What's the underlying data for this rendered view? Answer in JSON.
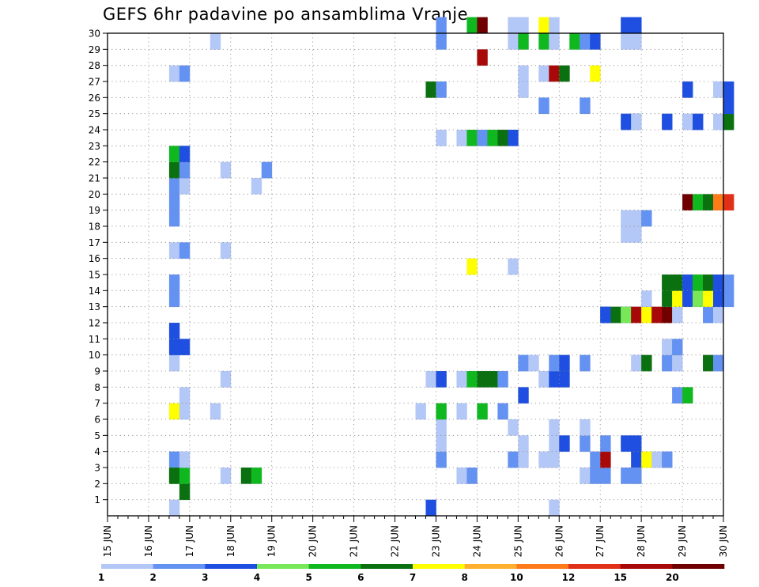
{
  "chart_data": {
    "type": "heatmap",
    "title": "GEFS 6hr padavine po ansamblima Vranje",
    "xlabel": "",
    "ylabel": "",
    "x_ticks": [
      "15 JUN",
      "16 JUN",
      "17 JUN",
      "18 JUN",
      "19 JUN",
      "20 JUN",
      "21 JUN",
      "22 JUN",
      "23 JUN",
      "24 JUN",
      "25 JUN",
      "26 JUN",
      "27 JUN",
      "28 JUN",
      "29 JUN",
      "30 JUN"
    ],
    "y_ticks": [
      "1",
      "2",
      "3",
      "4",
      "5",
      "6",
      "7",
      "8",
      "9",
      "10",
      "11",
      "12",
      "13",
      "14",
      "15",
      "16",
      "17",
      "18",
      "19",
      "20",
      "21",
      "22",
      "23",
      "24",
      "25",
      "26",
      "27",
      "28",
      "29",
      "30"
    ],
    "grid": true,
    "legend": {
      "placement": "bottom",
      "labels": [
        "1",
        "2",
        "3",
        "4",
        "5",
        "6",
        "7",
        "8",
        "10",
        "12",
        "15",
        "20"
      ],
      "colors": [
        "#b4c8f8",
        "#6492f2",
        "#1e4fe0",
        "#78e858",
        "#10b820",
        "#0a7010",
        "#ffff00",
        "#ffb030",
        "#ff7a18",
        "#e03018",
        "#a80808",
        "#700000"
      ]
    },
    "x_range": [
      "15 JUN 00Z",
      "30 JUN 00Z"
    ],
    "time_step": "6hr",
    "y_range": [
      0,
      30
    ],
    "cells_note": "each cell: [day(JUN), hour UTC, member, color level]",
    "cells": [
      [
        16,
        12,
        0,
        0
      ],
      [
        16,
        12,
        3,
        1
      ],
      [
        16,
        12,
        2,
        4
      ],
      [
        16,
        12,
        2,
        5
      ],
      [
        16,
        18,
        1,
        5
      ],
      [
        16,
        18,
        2,
        4
      ],
      [
        16,
        18,
        3,
        0
      ],
      [
        16,
        12,
        6,
        6
      ],
      [
        16,
        18,
        6,
        0
      ],
      [
        16,
        18,
        7,
        0
      ],
      [
        16,
        12,
        9,
        0
      ],
      [
        16,
        12,
        10,
        2
      ],
      [
        16,
        18,
        10,
        2
      ],
      [
        16,
        12,
        11,
        2
      ],
      [
        16,
        12,
        13,
        1
      ],
      [
        16,
        12,
        14,
        1
      ],
      [
        16,
        12,
        16,
        0
      ],
      [
        16,
        18,
        16,
        1
      ],
      [
        16,
        12,
        18,
        1
      ],
      [
        16,
        12,
        19,
        1
      ],
      [
        16,
        12,
        20,
        1
      ],
      [
        16,
        18,
        20,
        0
      ],
      [
        16,
        12,
        21,
        5
      ],
      [
        16,
        18,
        21,
        1
      ],
      [
        16,
        12,
        22,
        4
      ],
      [
        16,
        18,
        22,
        2
      ],
      [
        16,
        12,
        27,
        0
      ],
      [
        16,
        18,
        27,
        1
      ],
      [
        17,
        12,
        6,
        0
      ],
      [
        17,
        12,
        29,
        0
      ],
      [
        17,
        18,
        2,
        0
      ],
      [
        17,
        18,
        8,
        0
      ],
      [
        17,
        18,
        16,
        0
      ],
      [
        17,
        18,
        21,
        0
      ],
      [
        18,
        6,
        2,
        5
      ],
      [
        18,
        12,
        2,
        4
      ],
      [
        18,
        12,
        20,
        0
      ],
      [
        18,
        18,
        21,
        1
      ],
      [
        22,
        18,
        0,
        2
      ],
      [
        22,
        12,
        6,
        0
      ],
      [
        22,
        18,
        8,
        0
      ],
      [
        23,
        0,
        8,
        2
      ],
      [
        23,
        0,
        3,
        1
      ],
      [
        23,
        0,
        4,
        0
      ],
      [
        23,
        0,
        5,
        0
      ],
      [
        23,
        0,
        6,
        4
      ],
      [
        23,
        0,
        23,
        0
      ],
      [
        23,
        0,
        29,
        1
      ],
      [
        23,
        0,
        30,
        1
      ],
      [
        22,
        18,
        26,
        5
      ],
      [
        23,
        0,
        26,
        1
      ],
      [
        23,
        12,
        2,
        0
      ],
      [
        23,
        12,
        6,
        0
      ],
      [
        23,
        12,
        8,
        0
      ],
      [
        23,
        12,
        23,
        0
      ],
      [
        23,
        18,
        2,
        1
      ],
      [
        23,
        18,
        8,
        4
      ],
      [
        23,
        18,
        23,
        4
      ],
      [
        23,
        18,
        15,
        6
      ],
      [
        23,
        18,
        30,
        4
      ],
      [
        24,
        0,
        6,
        4
      ],
      [
        24,
        0,
        8,
        5
      ],
      [
        24,
        0,
        23,
        1
      ],
      [
        24,
        0,
        28,
        10
      ],
      [
        24,
        0,
        30,
        11
      ],
      [
        24,
        6,
        8,
        5
      ],
      [
        24,
        6,
        23,
        4
      ],
      [
        24,
        12,
        6,
        1
      ],
      [
        24,
        12,
        8,
        1
      ],
      [
        24,
        12,
        23,
        5
      ],
      [
        24,
        18,
        3,
        1
      ],
      [
        24,
        18,
        5,
        0
      ],
      [
        24,
        18,
        15,
        0
      ],
      [
        24,
        18,
        23,
        2
      ],
      [
        24,
        18,
        29,
        0
      ],
      [
        24,
        18,
        30,
        0
      ],
      [
        25,
        0,
        3,
        0
      ],
      [
        25,
        0,
        4,
        0
      ],
      [
        25,
        0,
        7,
        2
      ],
      [
        25,
        0,
        9,
        1
      ],
      [
        25,
        0,
        26,
        0
      ],
      [
        25,
        0,
        27,
        0
      ],
      [
        25,
        0,
        29,
        4
      ],
      [
        25,
        0,
        30,
        0
      ],
      [
        25,
        6,
        9,
        0
      ],
      [
        25,
        12,
        3,
        0
      ],
      [
        25,
        12,
        8,
        0
      ],
      [
        25,
        12,
        25,
        1
      ],
      [
        25,
        12,
        27,
        0
      ],
      [
        25,
        12,
        29,
        4
      ],
      [
        25,
        12,
        30,
        6
      ],
      [
        25,
        18,
        0,
        0
      ],
      [
        25,
        18,
        3,
        0
      ],
      [
        25,
        18,
        4,
        0
      ],
      [
        25,
        18,
        5,
        0
      ],
      [
        25,
        18,
        8,
        2
      ],
      [
        25,
        18,
        9,
        1
      ],
      [
        25,
        18,
        27,
        10
      ],
      [
        25,
        18,
        29,
        0
      ],
      [
        25,
        18,
        30,
        0
      ],
      [
        26,
        0,
        4,
        2
      ],
      [
        26,
        0,
        8,
        2
      ],
      [
        26,
        0,
        9,
        2
      ],
      [
        26,
        0,
        27,
        5
      ],
      [
        26,
        6,
        29,
        4
      ],
      [
        26,
        12,
        29,
        1
      ],
      [
        26,
        18,
        29,
        2
      ],
      [
        26,
        12,
        2,
        0
      ],
      [
        26,
        12,
        4,
        1
      ],
      [
        26,
        12,
        5,
        0
      ],
      [
        26,
        12,
        9,
        1
      ],
      [
        26,
        12,
        25,
        1
      ],
      [
        26,
        18,
        2,
        1
      ],
      [
        26,
        18,
        3,
        1
      ],
      [
        26,
        18,
        27,
        6
      ],
      [
        27,
        0,
        2,
        1
      ],
      [
        27,
        0,
        3,
        10
      ],
      [
        27,
        0,
        4,
        1
      ],
      [
        27,
        0,
        12,
        2
      ],
      [
        27,
        6,
        12,
        5
      ],
      [
        27,
        12,
        12,
        1
      ],
      [
        27,
        12,
        12,
        3
      ],
      [
        27,
        0,
        12,
        2
      ],
      [
        27,
        18,
        2,
        0
      ],
      [
        27,
        18,
        3,
        2
      ],
      [
        27,
        18,
        4,
        2
      ],
      [
        27,
        18,
        24,
        2
      ],
      [
        27,
        18,
        30,
        2
      ],
      [
        27,
        18,
        29,
        0
      ],
      [
        27,
        12,
        2,
        1
      ],
      [
        27,
        12,
        4,
        2
      ],
      [
        27,
        12,
        17,
        0
      ],
      [
        27,
        12,
        18,
        0
      ],
      [
        27,
        12,
        24,
        2
      ],
      [
        27,
        12,
        29,
        0
      ],
      [
        27,
        12,
        30,
        2
      ],
      [
        27,
        18,
        9,
        0
      ],
      [
        27,
        18,
        17,
        0
      ],
      [
        27,
        18,
        18,
        0
      ],
      [
        27,
        18,
        12,
        10
      ],
      [
        27,
        18,
        24,
        0
      ],
      [
        27,
        18,
        2,
        1
      ],
      [
        28,
        0,
        3,
        6
      ],
      [
        28,
        0,
        9,
        5
      ],
      [
        28,
        0,
        12,
        6
      ],
      [
        28,
        0,
        13,
        0
      ],
      [
        28,
        0,
        18,
        1
      ],
      [
        28,
        6,
        12,
        10
      ],
      [
        28,
        6,
        3,
        0
      ],
      [
        28,
        12,
        12,
        11
      ],
      [
        28,
        12,
        3,
        1
      ],
      [
        28,
        12,
        9,
        1
      ],
      [
        28,
        12,
        10,
        0
      ],
      [
        28,
        12,
        13,
        5
      ],
      [
        28,
        12,
        14,
        5
      ],
      [
        28,
        12,
        24,
        2
      ],
      [
        28,
        18,
        7,
        1
      ],
      [
        28,
        18,
        9,
        0
      ],
      [
        28,
        18,
        10,
        1
      ],
      [
        28,
        18,
        12,
        0
      ],
      [
        28,
        18,
        13,
        6
      ],
      [
        28,
        18,
        14,
        5
      ],
      [
        29,
        0,
        7,
        4
      ],
      [
        29,
        0,
        13,
        2
      ],
      [
        29,
        0,
        14,
        2
      ],
      [
        29,
        0,
        19,
        11
      ],
      [
        29,
        0,
        24,
        0
      ],
      [
        29,
        0,
        26,
        2
      ],
      [
        29,
        6,
        13,
        3
      ],
      [
        29,
        6,
        14,
        4
      ],
      [
        29,
        6,
        19,
        4
      ],
      [
        29,
        6,
        24,
        2
      ],
      [
        29,
        12,
        9,
        5
      ],
      [
        29,
        12,
        12,
        1
      ],
      [
        29,
        12,
        13,
        6
      ],
      [
        29,
        12,
        14,
        5
      ],
      [
        29,
        12,
        19,
        5
      ],
      [
        29,
        18,
        9,
        1
      ],
      [
        29,
        18,
        12,
        0
      ],
      [
        29,
        18,
        13,
        2
      ],
      [
        29,
        18,
        14,
        2
      ],
      [
        29,
        18,
        19,
        8
      ],
      [
        29,
        18,
        24,
        0
      ],
      [
        29,
        18,
        26,
        0
      ],
      [
        30,
        0,
        13,
        1
      ],
      [
        30,
        0,
        14,
        1
      ],
      [
        30,
        0,
        19,
        9
      ],
      [
        30,
        0,
        24,
        5
      ],
      [
        30,
        0,
        25,
        2
      ],
      [
        30,
        0,
        26,
        2
      ]
    ]
  }
}
